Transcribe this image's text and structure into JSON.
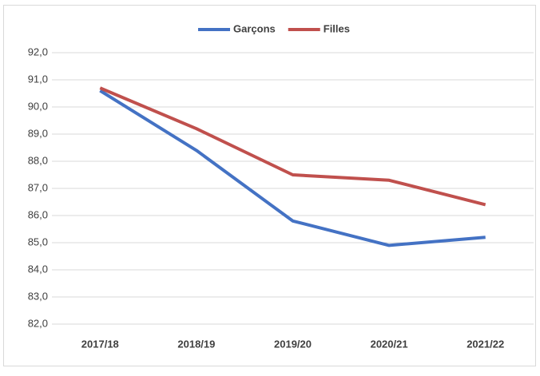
{
  "chart_data": {
    "type": "line",
    "categories": [
      "2017/18",
      "2018/19",
      "2019/20",
      "2020/21",
      "2021/22"
    ],
    "series": [
      {
        "name": "Garçons",
        "color": "#4472c4",
        "values": [
          90.6,
          88.4,
          85.8,
          84.9,
          85.2
        ]
      },
      {
        "name": "Filles",
        "color": "#c0504d",
        "values": [
          90.7,
          89.2,
          87.5,
          87.3,
          86.4
        ]
      }
    ],
    "ylim": [
      82,
      92
    ],
    "yticks": [
      {
        "value": 82,
        "label": "82,0"
      },
      {
        "value": 83,
        "label": "83,0"
      },
      {
        "value": 84,
        "label": "84,0"
      },
      {
        "value": 85,
        "label": "85,0"
      },
      {
        "value": 86,
        "label": "86,0"
      },
      {
        "value": 87,
        "label": "87,0"
      },
      {
        "value": 88,
        "label": "88,0"
      },
      {
        "value": 89,
        "label": "89,0"
      },
      {
        "value": 90,
        "label": "90,0"
      },
      {
        "value": 91,
        "label": "91,0"
      },
      {
        "value": 92,
        "label": "92,0"
      }
    ],
    "grid": true,
    "legend": "top"
  }
}
